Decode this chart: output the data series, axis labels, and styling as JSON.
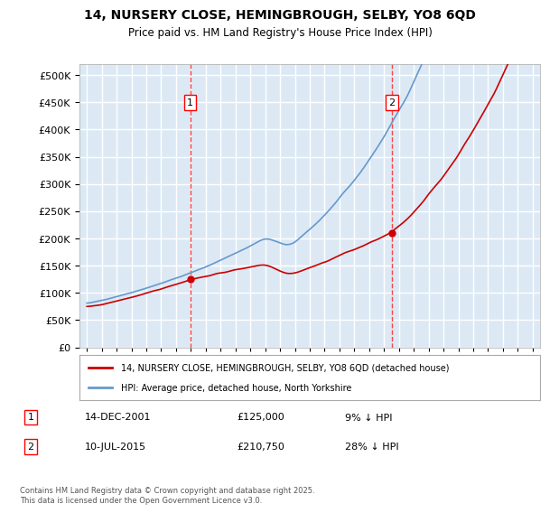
{
  "title_line1": "14, NURSERY CLOSE, HEMINGBROUGH, SELBY, YO8 6QD",
  "title_line2": "Price paid vs. HM Land Registry's House Price Index (HPI)",
  "bg_color": "#dce9f5",
  "plot_bg_color": "#dce9f5",
  "grid_color": "#ffffff",
  "sale1_date_label": "14-DEC-2001",
  "sale1_price": 125000,
  "sale1_x": 2001.95,
  "sale1_pct": "9% ↓ HPI",
  "sale2_date_label": "10-JUL-2015",
  "sale2_price": 210750,
  "sale2_x": 2015.52,
  "sale2_pct": "28% ↓ HPI",
  "legend_label1": "14, NURSERY CLOSE, HEMINGBROUGH, SELBY, YO8 6QD (detached house)",
  "legend_label2": "HPI: Average price, detached house, North Yorkshire",
  "footer": "Contains HM Land Registry data © Crown copyright and database right 2025.\nThis data is licensed under the Open Government Licence v3.0.",
  "red_color": "#cc0000",
  "blue_color": "#6699cc",
  "dashed_color": "#ff4444",
  "ylim": [
    0,
    520000
  ],
  "yticks": [
    0,
    50000,
    100000,
    150000,
    200000,
    250000,
    300000,
    350000,
    400000,
    450000,
    500000
  ],
  "xlim": [
    1994.5,
    2025.5
  ]
}
